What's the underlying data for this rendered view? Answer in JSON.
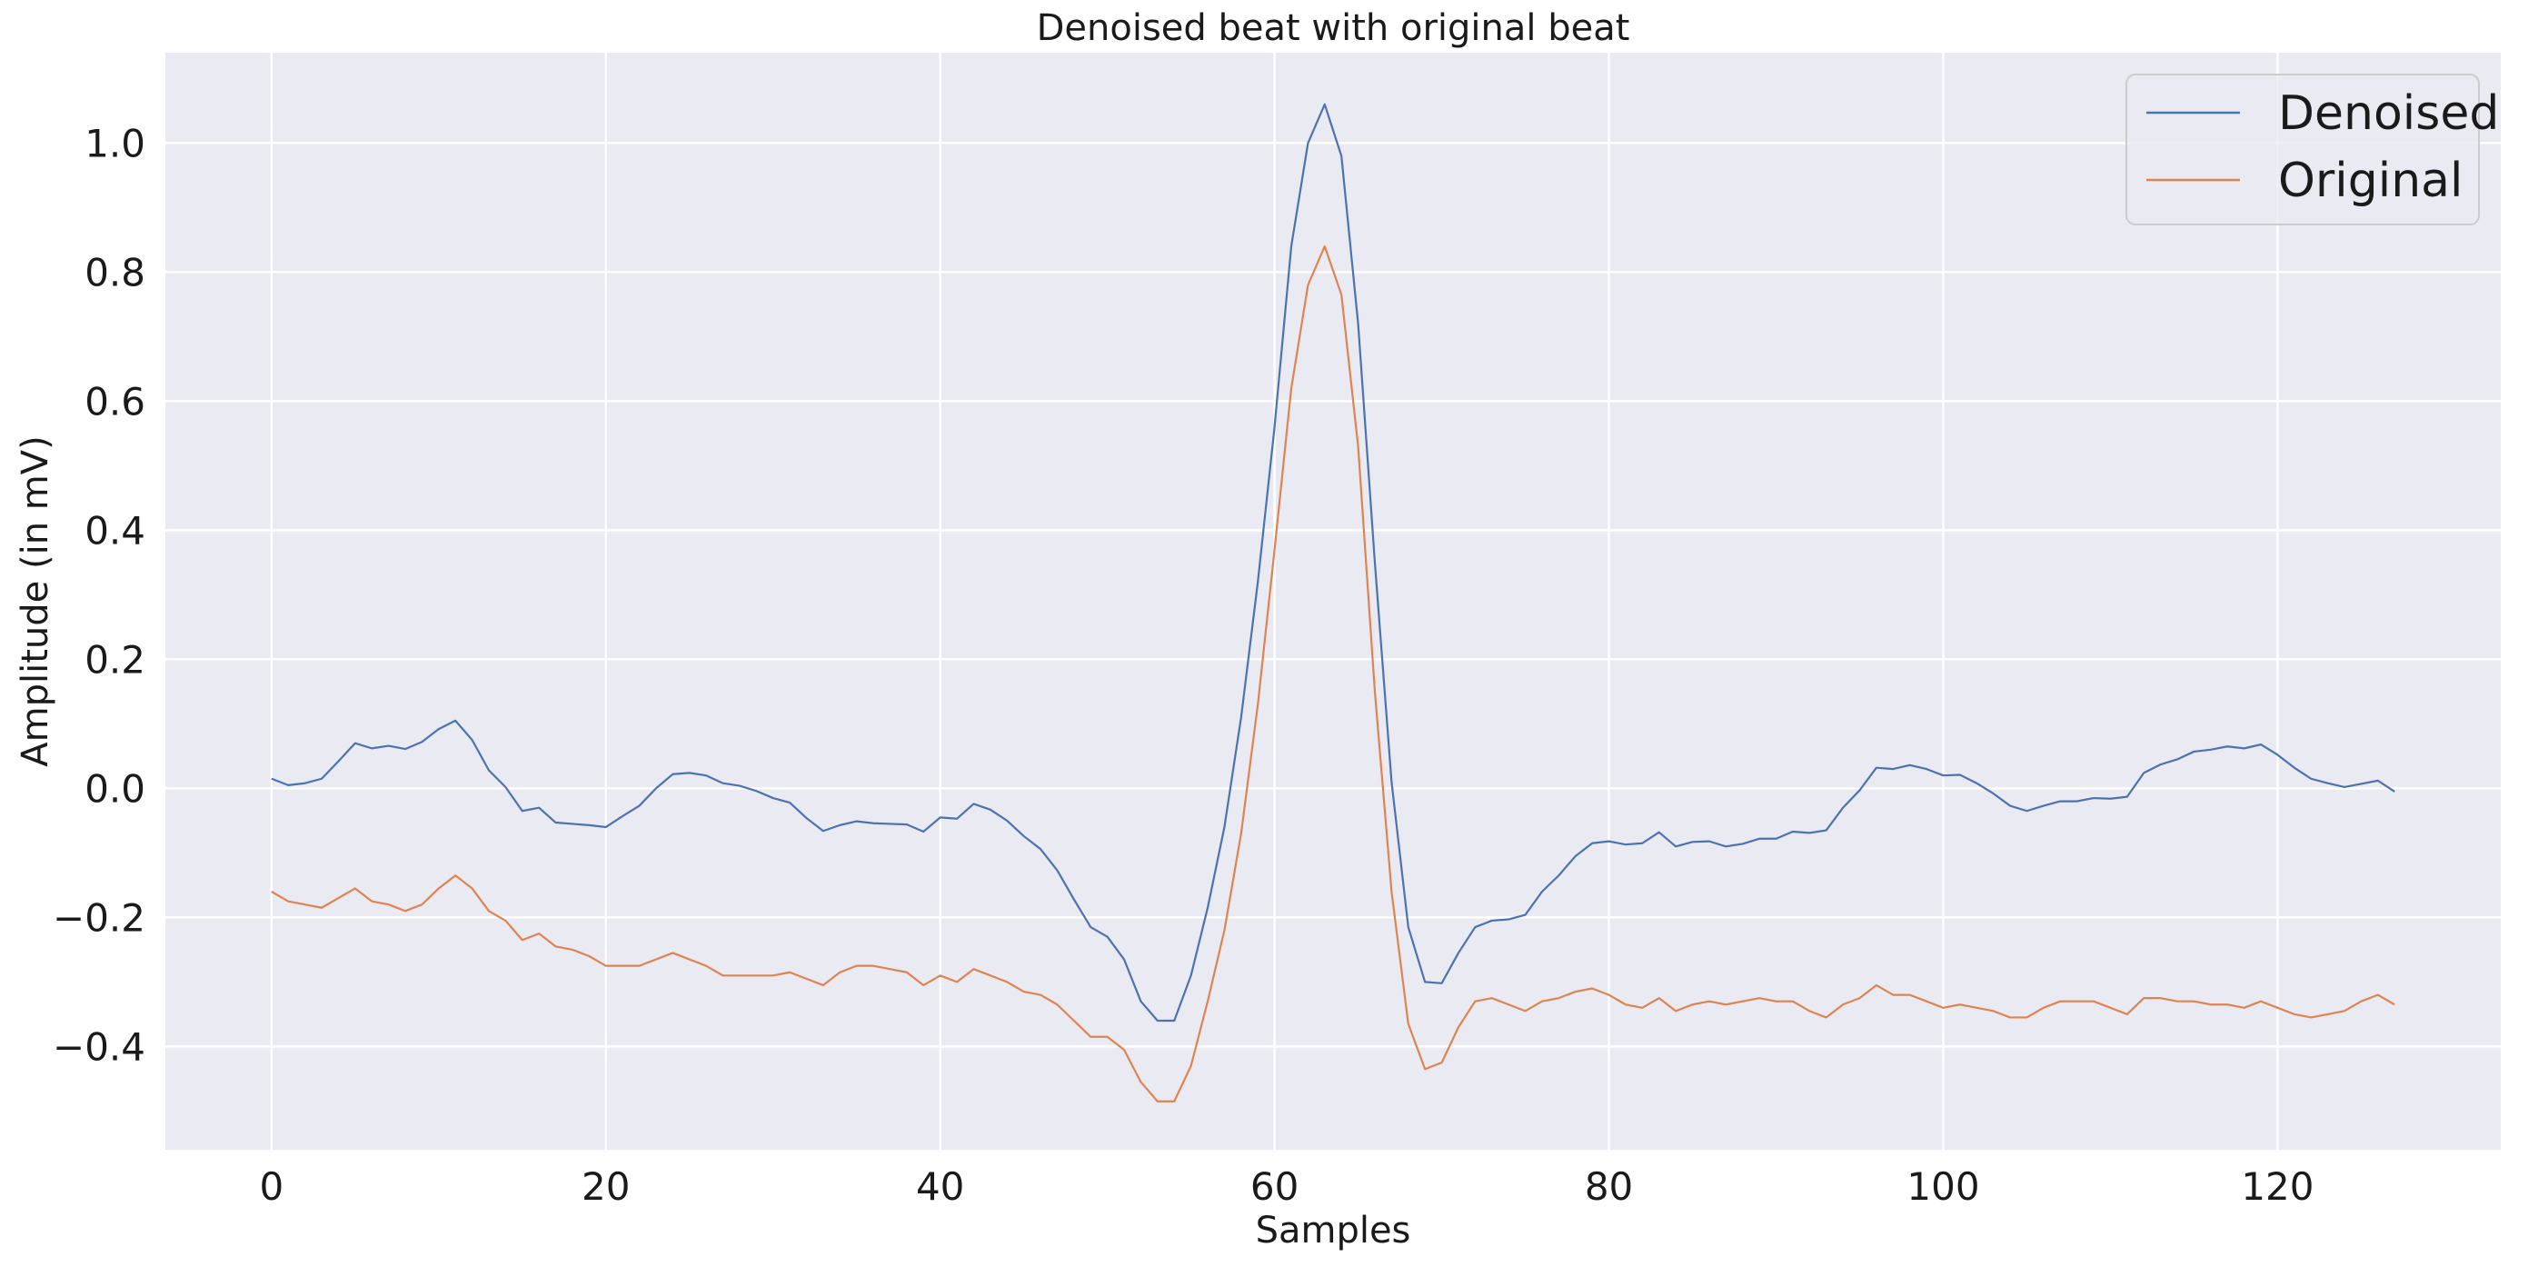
{
  "chart_data": {
    "type": "line",
    "title": "Denoised beat with original beat",
    "xlabel": "Samples",
    "ylabel": "Amplitude (in mV)",
    "xlim": [
      -6.35,
      133.35
    ],
    "ylim": [
      -0.56,
      1.14
    ],
    "xticks": [
      0,
      20,
      40,
      60,
      80,
      100,
      120
    ],
    "yticks": [
      -0.4,
      -0.2,
      0.0,
      0.2,
      0.4,
      0.6,
      0.8,
      1.0
    ],
    "xtick_labels": [
      "0",
      "20",
      "40",
      "60",
      "80",
      "100",
      "120"
    ],
    "ytick_labels": [
      "−0.4",
      "−0.2",
      "0.0",
      "0.2",
      "0.4",
      "0.6",
      "0.8",
      "1.0"
    ],
    "grid": true,
    "legend_position": "top-right",
    "background_color": "#EAEAF2",
    "grid_color": "#FFFFFF",
    "series": [
      {
        "name": "Denoised",
        "color": "#4C72B0",
        "values": [
          0.015,
          0.005,
          0.008,
          0.015,
          0.042,
          0.07,
          0.062,
          0.066,
          0.061,
          0.072,
          0.092,
          0.105,
          0.075,
          0.028,
          0.002,
          -0.035,
          -0.03,
          -0.053,
          -0.055,
          -0.057,
          -0.06,
          -0.043,
          -0.027,
          0.0,
          0.022,
          0.024,
          0.02,
          0.008,
          0.004,
          -0.004,
          -0.015,
          -0.022,
          -0.046,
          -0.066,
          -0.057,
          -0.051,
          -0.054,
          -0.055,
          -0.056,
          -0.067,
          -0.045,
          -0.047,
          -0.024,
          -0.033,
          -0.05,
          -0.074,
          -0.094,
          -0.127,
          -0.172,
          -0.215,
          -0.23,
          -0.265,
          -0.33,
          -0.36,
          -0.36,
          -0.29,
          -0.185,
          -0.06,
          0.11,
          0.32,
          0.56,
          0.84,
          1.0,
          1.06,
          0.98,
          0.72,
          0.35,
          0.01,
          -0.215,
          -0.3,
          -0.302,
          -0.255,
          -0.215,
          -0.205,
          -0.203,
          -0.196,
          -0.16,
          -0.135,
          -0.105,
          -0.085,
          -0.082,
          -0.087,
          -0.085,
          -0.068,
          -0.09,
          -0.083,
          -0.082,
          -0.09,
          -0.086,
          -0.078,
          -0.078,
          -0.067,
          -0.069,
          -0.065,
          -0.03,
          -0.003,
          0.032,
          0.03,
          0.036,
          0.03,
          0.02,
          0.021,
          0.008,
          -0.008,
          -0.027,
          -0.035,
          -0.027,
          -0.02,
          -0.02,
          -0.015,
          -0.016,
          -0.013,
          0.024,
          0.037,
          0.045,
          0.057,
          0.06,
          0.065,
          0.062,
          0.068,
          0.052,
          0.032,
          0.015,
          0.008,
          0.002,
          0.007,
          0.012,
          -0.005
        ]
      },
      {
        "name": "Original",
        "color": "#DD8452",
        "values": [
          -0.16,
          -0.175,
          -0.18,
          -0.185,
          -0.17,
          -0.155,
          -0.175,
          -0.18,
          -0.19,
          -0.18,
          -0.155,
          -0.135,
          -0.155,
          -0.19,
          -0.205,
          -0.235,
          -0.225,
          -0.245,
          -0.25,
          -0.26,
          -0.275,
          -0.275,
          -0.275,
          -0.265,
          -0.255,
          -0.265,
          -0.275,
          -0.29,
          -0.29,
          -0.29,
          -0.29,
          -0.285,
          -0.295,
          -0.305,
          -0.285,
          -0.275,
          -0.275,
          -0.28,
          -0.285,
          -0.305,
          -0.29,
          -0.3,
          -0.28,
          -0.29,
          -0.3,
          -0.315,
          -0.32,
          -0.335,
          -0.36,
          -0.385,
          -0.385,
          -0.405,
          -0.455,
          -0.485,
          -0.485,
          -0.43,
          -0.33,
          -0.22,
          -0.07,
          0.13,
          0.37,
          0.62,
          0.78,
          0.84,
          0.765,
          0.53,
          0.15,
          -0.16,
          -0.365,
          -0.435,
          -0.425,
          -0.37,
          -0.33,
          -0.325,
          -0.335,
          -0.345,
          -0.33,
          -0.325,
          -0.315,
          -0.31,
          -0.32,
          -0.335,
          -0.34,
          -0.325,
          -0.345,
          -0.335,
          -0.33,
          -0.335,
          -0.33,
          -0.325,
          -0.33,
          -0.33,
          -0.345,
          -0.355,
          -0.335,
          -0.325,
          -0.305,
          -0.32,
          -0.32,
          -0.33,
          -0.34,
          -0.335,
          -0.34,
          -0.345,
          -0.355,
          -0.355,
          -0.34,
          -0.33,
          -0.33,
          -0.33,
          -0.34,
          -0.35,
          -0.325,
          -0.325,
          -0.33,
          -0.33,
          -0.335,
          -0.335,
          -0.34,
          -0.33,
          -0.34,
          -0.35,
          -0.355,
          -0.35,
          -0.345,
          -0.33,
          -0.32,
          -0.335
        ]
      }
    ]
  }
}
